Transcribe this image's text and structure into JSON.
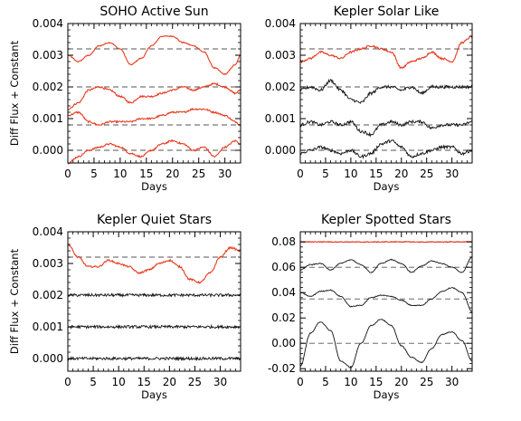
{
  "chart_data": [
    {
      "type": "line",
      "title": "SOHO Active Sun",
      "xlabel": "Days",
      "ylabel": "Diff Flux + Constant",
      "xlim": [
        0,
        33
      ],
      "ylim": [
        -0.0004,
        0.004
      ],
      "xticks": [
        "0",
        "5",
        "10",
        "15",
        "20",
        "25",
        "30"
      ],
      "xtick_values": [
        0,
        5,
        10,
        15,
        20,
        25,
        30
      ],
      "yticks": [
        "0.000",
        "0.001",
        "0.002",
        "0.003",
        "0.004"
      ],
      "ytick_values": [
        0,
        0.001,
        0.002,
        0.003,
        0.004
      ],
      "reference_lines": [
        0.0032,
        0.002,
        0.0008,
        0.0
      ],
      "series": [
        {
          "color": "#e8391e",
          "x": [
            0,
            2,
            4,
            6,
            8,
            10,
            12,
            14,
            16,
            18,
            20,
            22,
            24,
            26,
            28,
            30,
            32,
            33
          ],
          "y": [
            0.003,
            0.0028,
            0.003,
            0.0033,
            0.0034,
            0.0032,
            0.0027,
            0.0029,
            0.0033,
            0.0036,
            0.0036,
            0.0034,
            0.0033,
            0.0031,
            0.0026,
            0.0024,
            0.0027,
            0.003
          ]
        },
        {
          "color": "#e8391e",
          "x": [
            0,
            2,
            4,
            6,
            8,
            10,
            12,
            14,
            16,
            18,
            20,
            22,
            24,
            26,
            28,
            30,
            32,
            33
          ],
          "y": [
            0.0013,
            0.0015,
            0.0019,
            0.002,
            0.0019,
            0.0017,
            0.0015,
            0.0017,
            0.0017,
            0.0018,
            0.0019,
            0.002,
            0.0019,
            0.002,
            0.0021,
            0.002,
            0.0018,
            0.0019
          ]
        },
        {
          "color": "#e8391e",
          "x": [
            0,
            2,
            4,
            6,
            8,
            10,
            12,
            14,
            16,
            18,
            20,
            22,
            24,
            26,
            28,
            30,
            32,
            33
          ],
          "y": [
            0.0011,
            0.0012,
            0.0009,
            0.0008,
            0.0009,
            0.0009,
            0.0009,
            0.001,
            0.001,
            0.0011,
            0.0012,
            0.0012,
            0.0013,
            0.0013,
            0.0012,
            0.0011,
            0.0009,
            0.0008
          ]
        },
        {
          "color": "#e8391e",
          "x": [
            0,
            2,
            4,
            6,
            8,
            10,
            12,
            14,
            16,
            18,
            20,
            22,
            24,
            26,
            28,
            30,
            32,
            33
          ],
          "y": [
            -0.0004,
            -0.0002,
            0.0,
            0.0001,
            0.0002,
            0.0001,
            -0.0001,
            -0.0002,
            0.0,
            0.0002,
            0.0003,
            0.0002,
            0.0,
            0.0001,
            -0.0002,
            0.0001,
            0.0003,
            0.0002
          ]
        }
      ]
    },
    {
      "type": "line",
      "title": "Kepler Solar Like",
      "xlabel": "Days",
      "ylabel": "",
      "xlim": [
        0,
        34
      ],
      "ylim": [
        -0.0004,
        0.004
      ],
      "xticks": [
        "0",
        "5",
        "10",
        "15",
        "20",
        "25",
        "30"
      ],
      "xtick_values": [
        0,
        5,
        10,
        15,
        20,
        25,
        30
      ],
      "yticks": [
        "0.000",
        "0.001",
        "0.002",
        "0.003",
        "0.004"
      ],
      "ytick_values": [
        0,
        0.001,
        0.002,
        0.003,
        0.004
      ],
      "reference_lines": [
        0.0032,
        0.002,
        0.0008,
        0.0
      ],
      "series": [
        {
          "color": "#e8391e",
          "x": [
            0,
            2,
            4,
            6,
            8,
            10,
            12,
            14,
            16,
            18,
            20,
            22,
            24,
            26,
            28,
            30,
            32,
            34
          ],
          "y": [
            0.0028,
            0.0029,
            0.0031,
            0.003,
            0.0029,
            0.0031,
            0.0032,
            0.0033,
            0.0032,
            0.0031,
            0.0026,
            0.0028,
            0.0029,
            0.0031,
            0.0029,
            0.0028,
            0.0034,
            0.0036
          ]
        },
        {
          "color": "#111111",
          "x": [
            0,
            2,
            4,
            6,
            8,
            10,
            12,
            14,
            16,
            18,
            20,
            22,
            24,
            26,
            28,
            30,
            32,
            34
          ],
          "y": [
            0.0019,
            0.002,
            0.0019,
            0.0022,
            0.0019,
            0.0016,
            0.0015,
            0.0018,
            0.002,
            0.002,
            0.0019,
            0.002,
            0.0018,
            0.002,
            0.002,
            0.002,
            0.002,
            0.002
          ]
        },
        {
          "color": "#111111",
          "x": [
            0,
            2,
            4,
            6,
            8,
            10,
            12,
            14,
            16,
            18,
            20,
            22,
            24,
            26,
            28,
            30,
            32,
            34
          ],
          "y": [
            0.0008,
            0.0009,
            0.0008,
            0.0009,
            0.0008,
            0.0009,
            0.0006,
            0.0005,
            0.0008,
            0.0009,
            0.0008,
            0.0009,
            0.0009,
            0.0007,
            0.0008,
            0.0008,
            0.0008,
            0.0009
          ]
        },
        {
          "color": "#111111",
          "x": [
            0,
            2,
            4,
            6,
            8,
            10,
            12,
            14,
            16,
            18,
            20,
            22,
            24,
            26,
            28,
            30,
            32,
            34
          ],
          "y": [
            -0.0001,
            0.0,
            0.0001,
            0.0,
            -0.0001,
            0.0,
            -0.0002,
            -0.0001,
            0.0002,
            0.0003,
            0.0001,
            -0.0002,
            -0.0001,
            0.0,
            0.0001,
            0.0001,
            -0.0001,
            0.0
          ]
        }
      ]
    },
    {
      "type": "line",
      "title": "Kepler Quiet Stars",
      "xlabel": "Days",
      "ylabel": "Diff Flux + Constant",
      "xlim": [
        0,
        34
      ],
      "ylim": [
        -0.0004,
        0.004
      ],
      "xticks": [
        "0",
        "5",
        "10",
        "15",
        "20",
        "25",
        "30"
      ],
      "xtick_values": [
        0,
        5,
        10,
        15,
        20,
        25,
        30
      ],
      "yticks": [
        "0.000",
        "0.001",
        "0.002",
        "0.003",
        "0.004"
      ],
      "ytick_values": [
        0,
        0.001,
        0.002,
        0.003,
        0.004
      ],
      "reference_lines": [
        0.0032
      ],
      "series": [
        {
          "color": "#e8391e",
          "x": [
            0,
            2,
            4,
            6,
            8,
            10,
            12,
            14,
            16,
            18,
            20,
            22,
            24,
            26,
            28,
            30,
            32,
            34
          ],
          "y": [
            0.0036,
            0.0032,
            0.0029,
            0.0029,
            0.0031,
            0.003,
            0.0029,
            0.0027,
            0.0028,
            0.003,
            0.0031,
            0.0029,
            0.0025,
            0.0024,
            0.0027,
            0.0032,
            0.0035,
            0.0034
          ]
        },
        {
          "color": "#111111",
          "x": [
            0,
            4,
            8,
            12,
            16,
            20,
            24,
            28,
            34
          ],
          "y": [
            0.002,
            0.002,
            0.002,
            0.002,
            0.002,
            0.002,
            0.002,
            0.002,
            0.002
          ]
        },
        {
          "color": "#111111",
          "x": [
            0,
            4,
            8,
            12,
            16,
            20,
            24,
            28,
            34
          ],
          "y": [
            0.001,
            0.001,
            0.001,
            0.001,
            0.001,
            0.001,
            0.001,
            0.001,
            0.001
          ]
        },
        {
          "color": "#111111",
          "x": [
            0,
            4,
            8,
            12,
            16,
            20,
            24,
            28,
            34
          ],
          "y": [
            0.0,
            0.0,
            0.0,
            0.0,
            0.0,
            0.0,
            0.0,
            0.0,
            0.0
          ]
        }
      ]
    },
    {
      "type": "line",
      "title": "Kepler Spotted Stars",
      "xlabel": "Days",
      "ylabel": "",
      "xlim": [
        0,
        34
      ],
      "ylim": [
        -0.022,
        0.088
      ],
      "xticks": [
        "0",
        "5",
        "10",
        "15",
        "20",
        "25",
        "30"
      ],
      "xtick_values": [
        0,
        5,
        10,
        15,
        20,
        25,
        30
      ],
      "yticks": [
        "-0.02",
        "0.00",
        "0.02",
        "0.04",
        "0.06",
        "0.08"
      ],
      "ytick_values": [
        -0.02,
        0,
        0.02,
        0.04,
        0.06,
        0.08
      ],
      "reference_lines": [
        0.08,
        0.06,
        0.035,
        0.0
      ],
      "series": [
        {
          "color": "#e8391e",
          "x": [
            0,
            4,
            8,
            12,
            16,
            20,
            24,
            28,
            34
          ],
          "y": [
            0.08,
            0.0801,
            0.08,
            0.0799,
            0.08,
            0.0801,
            0.0799,
            0.08,
            0.0801
          ]
        },
        {
          "color": "#111111",
          "x": [
            0,
            2,
            4,
            6,
            8,
            10,
            12,
            14,
            16,
            18,
            20,
            22,
            24,
            26,
            28,
            30,
            32,
            34
          ],
          "y": [
            0.058,
            0.062,
            0.063,
            0.058,
            0.063,
            0.066,
            0.062,
            0.056,
            0.063,
            0.066,
            0.063,
            0.056,
            0.061,
            0.065,
            0.063,
            0.06,
            0.056,
            0.068
          ]
        },
        {
          "color": "#111111",
          "x": [
            0,
            2,
            4,
            6,
            8,
            10,
            12,
            14,
            16,
            18,
            20,
            22,
            24,
            26,
            28,
            30,
            32,
            34
          ],
          "y": [
            0.04,
            0.037,
            0.041,
            0.042,
            0.037,
            0.029,
            0.03,
            0.036,
            0.038,
            0.037,
            0.034,
            0.03,
            0.03,
            0.035,
            0.041,
            0.044,
            0.04,
            0.025
          ]
        },
        {
          "color": "#111111",
          "x": [
            0,
            2,
            4,
            6,
            8,
            10,
            12,
            14,
            16,
            18,
            20,
            22,
            24,
            26,
            28,
            30,
            32,
            34
          ],
          "y": [
            -0.018,
            0.008,
            0.017,
            0.01,
            -0.014,
            -0.019,
            0.0,
            0.014,
            0.019,
            0.014,
            -0.002,
            -0.011,
            -0.015,
            -0.004,
            0.007,
            0.009,
            0.002,
            -0.014
          ]
        }
      ]
    }
  ]
}
